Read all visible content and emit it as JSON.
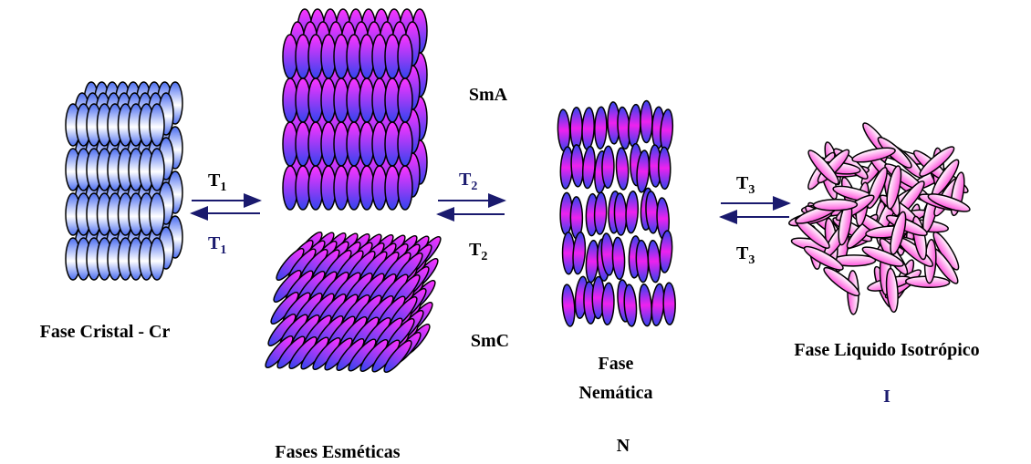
{
  "labels": {
    "sma": "SmA",
    "smc": "SmC",
    "crystal": "Fase Cristal - Cr",
    "smectic": "Fases Esméticas",
    "nematic": [
      "Fase",
      "Nemática"
    ],
    "nematic_symbol": "N",
    "isotropic": "Fase Liquido Isotrópico",
    "isotropic_symbol": "I"
  },
  "transitions": [
    {
      "forward": {
        "base": "T",
        "sub": "1"
      },
      "backward": {
        "base": "T",
        "sub": "1"
      }
    },
    {
      "forward": {
        "base": "T",
        "sub": "2"
      },
      "backward": {
        "base": "T",
        "sub": "2"
      }
    },
    {
      "forward": {
        "base": "T",
        "sub": "3"
      },
      "backward": {
        "base": "T",
        "sub": "3"
      }
    }
  ]
}
